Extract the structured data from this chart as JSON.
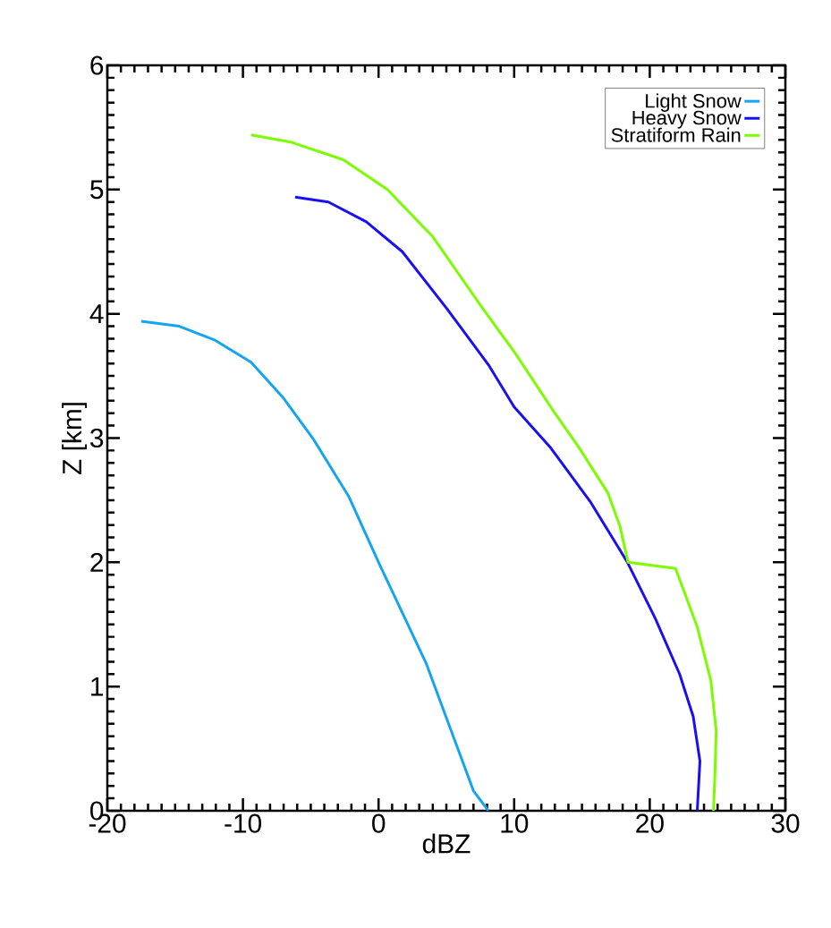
{
  "chart_data": {
    "type": "line",
    "xlabel": "dBZ",
    "ylabel": "Z [km]",
    "xlim": [
      -20,
      30
    ],
    "ylim": [
      0,
      6
    ],
    "xticks": [
      -20,
      -10,
      0,
      10,
      20,
      30
    ],
    "yticks": [
      0,
      1,
      2,
      3,
      4,
      5,
      6
    ],
    "legend": "top right",
    "grid": false,
    "marker": "none",
    "line_style": "solid",
    "series": [
      {
        "name": "Light Snow",
        "color": "#14a4f0",
        "x": [
          -17.5,
          -14.7,
          -12.1,
          -9.4,
          -7.0,
          -4.8,
          -2.2,
          0,
          3.5,
          7.0,
          8.1
        ],
        "values": [
          3.94,
          3.9,
          3.79,
          3.61,
          3.32,
          2.99,
          2.53,
          2.0,
          1.19,
          0.16,
          0
        ]
      },
      {
        "name": "Heavy Snow",
        "color": "#1a0ff0",
        "x": [
          -6.15,
          -3.7,
          -0.9,
          1.75,
          5.05,
          8.1,
          10.0,
          12.7,
          15.6,
          18.35,
          20.4,
          22.2,
          23.2,
          23.7,
          23.5
        ],
        "values": [
          4.94,
          4.9,
          4.74,
          4.5,
          4.04,
          3.59,
          3.25,
          2.92,
          2.49,
          2.0,
          1.55,
          1.1,
          0.76,
          0.4,
          0
        ]
      },
      {
        "name": "Stratiform Rain",
        "color": "#7cfc00",
        "x": [
          -9.4,
          -6.4,
          -2.6,
          0.65,
          4.0,
          7.7,
          10.1,
          13.0,
          14.8,
          16.9,
          17.8,
          18.4,
          21.9,
          23.5,
          24.5,
          24.9,
          24.8,
          24.7
        ],
        "values": [
          5.44,
          5.38,
          5.24,
          5.0,
          4.62,
          4.04,
          3.68,
          3.2,
          2.92,
          2.56,
          2.29,
          2.0,
          1.95,
          1.48,
          1.05,
          0.64,
          0.28,
          0
        ]
      }
    ]
  }
}
